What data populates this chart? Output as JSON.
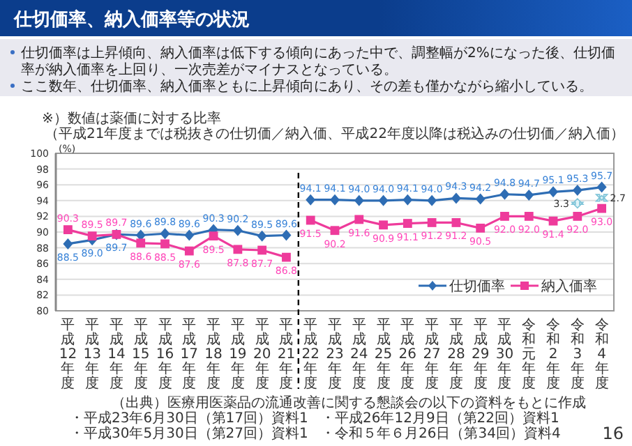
{
  "chart_data": {
    "type": "line",
    "title": "仕切価率、納入価率等の状況",
    "ylabel": "(%)",
    "categories": [
      "平成12年度",
      "平成13年度",
      "平成14年度",
      "平成15年度",
      "平成16年度",
      "平成17年度",
      "平成18年度",
      "平成19年度",
      "平成20年度",
      "平成21年度",
      "平成22年度",
      "平成23年度",
      "平成24年度",
      "平成25年度",
      "平成26年度",
      "平成27年度",
      "平成28年度",
      "平成29年度",
      "平成30年度",
      "令和元年度",
      "令和2年度",
      "令和3年度",
      "令和4年度"
    ],
    "series": [
      {
        "name": "仕切価率",
        "color": "#2e6db4",
        "marker": "diamond",
        "values": [
          88.5,
          89.0,
          89.7,
          89.6,
          89.8,
          89.6,
          90.3,
          90.2,
          89.5,
          89.6,
          null,
          null,
          null,
          null,
          null,
          null,
          null,
          null,
          null,
          null,
          null,
          null,
          null
        ],
        "value_labels": [
          "88.5",
          "89.0",
          "89.7",
          "89.6",
          "89.8",
          "89.6",
          "90.3",
          "90.2",
          "89.5",
          "89.6",
          null,
          null,
          null,
          null,
          null,
          null,
          null,
          null,
          null,
          null,
          null,
          null,
          null
        ]
      },
      {
        "name": "納入価率",
        "color": "#ee3b9b",
        "marker": "square",
        "values": [
          90.3,
          89.5,
          89.7,
          88.6,
          88.5,
          87.6,
          89.5,
          87.8,
          87.7,
          86.8,
          null,
          null,
          null,
          null,
          null,
          null,
          null,
          null,
          null,
          null,
          null,
          null,
          null
        ],
        "value_labels": [
          "90.3",
          "89.5",
          "89.7",
          "88.6",
          "88.5",
          "87.6",
          "89.5",
          "87.8",
          "87.7",
          "86.8",
          null,
          null,
          null,
          null,
          null,
          null,
          null,
          null,
          null,
          null,
          null,
          null,
          null
        ]
      },
      {
        "color": "#2e6db4",
        "marker": "diamond",
        "values": [
          null,
          null,
          null,
          null,
          null,
          null,
          null,
          null,
          null,
          null,
          94.1,
          94.1,
          94.0,
          94.0,
          94.1,
          94.0,
          94.3,
          94.2,
          94.8,
          94.7,
          95.1,
          95.3,
          95.7
        ],
        "value_labels": [
          null,
          null,
          null,
          null,
          null,
          null,
          null,
          null,
          null,
          null,
          "94.1",
          "94.1",
          "94.0",
          "94.0",
          "94.1",
          "94.0",
          "94.3",
          "94.2",
          "94.8",
          "94.7",
          "95.1",
          "95.3",
          "95.7"
        ]
      },
      {
        "color": "#ee3b9b",
        "marker": "square",
        "values": [
          null,
          null,
          null,
          null,
          null,
          null,
          null,
          null,
          null,
          null,
          91.5,
          90.2,
          91.6,
          90.9,
          91.1,
          91.2,
          91.2,
          90.5,
          92.0,
          92.0,
          91.4,
          92.0,
          93.0
        ],
        "value_labels": [
          null,
          null,
          null,
          null,
          null,
          null,
          null,
          null,
          null,
          null,
          "91.5",
          "90.2",
          "91.6",
          "90.9",
          "91.1",
          "91.2",
          "91.2",
          "90.5",
          "92.0",
          "92.0",
          "91.4",
          "92.0",
          "93.0"
        ]
      }
    ],
    "ylim": [
      80,
      100
    ],
    "yticks": [
      80,
      82,
      84,
      86,
      88,
      90,
      92,
      94,
      96,
      98,
      100
    ],
    "grid": "y",
    "legend": "bottom right",
    "ref_lines": [
      {
        "axis": "x",
        "value": "平成21年度",
        "line_style": "dashed",
        "color": "#000000"
      }
    ],
    "annotations": [
      "仕切価率は上昇傾向、納入価率は低下する傾向にあった中で、調整幅が2%になった後、仕切価率が納入価率を上回り、一次売差がマイナスとなっている。",
      "ここ数年、仕切価率、納入価率ともに上昇傾向にあり、その差も僅かながら縮小している。",
      "※）数値は薬価に対する比率",
      "（平成21年度までは税抜きの仕切価／納入価、平成22年度以降は税込みの仕切価／納入価）",
      "（出典）医療用医薬品の流通改善に関する懇談会の以下の資料をもとに作成",
      "・平成23年6月30日（第17回）資料1",
      "・平成26年12月9日（第22回）資料1",
      "・平成30年5月30日（第27回）資料1",
      "・令和５年６月26日（第34回）資料4",
      "16",
      {
        "text": "3.3",
        "x": "令和3年度",
        "y": 93.65
      },
      {
        "text": "2.7",
        "x": "令和4年度",
        "y": 94.35
      }
    ]
  }
}
